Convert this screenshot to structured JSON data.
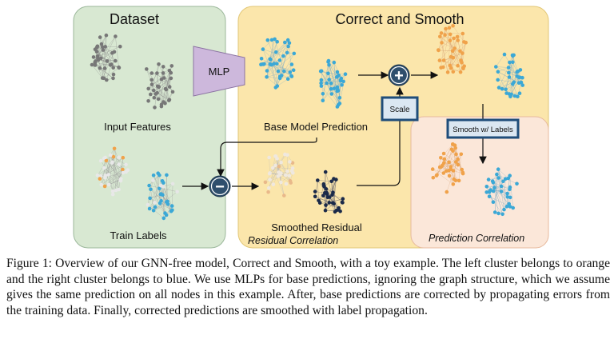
{
  "figure": {
    "panel_dataset": "Dataset",
    "panel_correct_smooth": "Correct and Smooth",
    "mlp_label": "MLP",
    "input_features": "Input Features",
    "train_labels": "Train Labels",
    "base_model_prediction": "Base Model Prediction",
    "smoothed_residual": "Smoothed Residual",
    "residual_correlation": "Residual Correlation",
    "prediction_correlation": "Prediction Correlation",
    "scale_label": "Scale",
    "smooth_labels": "Smooth w/ Labels",
    "plus_symbol": "+",
    "minus_symbol": "−"
  },
  "colors": {
    "dataset_bg": "#d8e8d2",
    "cs_bg": "#fbe6ab",
    "pred_corr_bg": "#fbe7d9",
    "grey_node": "#777777",
    "blue_node": "#3ba8d6",
    "orange_node": "#f0a24a",
    "navy_node": "#1b2a49",
    "mlp_fill": "#cdb8dc",
    "op_circle": "#2f4f6d",
    "box_border": "#1f4d7a"
  },
  "caption": "Figure 1: Overview of our GNN-free model, Correct and Smooth, with a toy example. The left cluster belongs to orange and the right cluster belongs to blue. We use MLPs for base predictions, ignoring the graph structure, which we assume gives the same prediction on all nodes in this example. After, base predictions are corrected by propagating errors from the training data. Finally, corrected predictions are smoothed with label propagation."
}
